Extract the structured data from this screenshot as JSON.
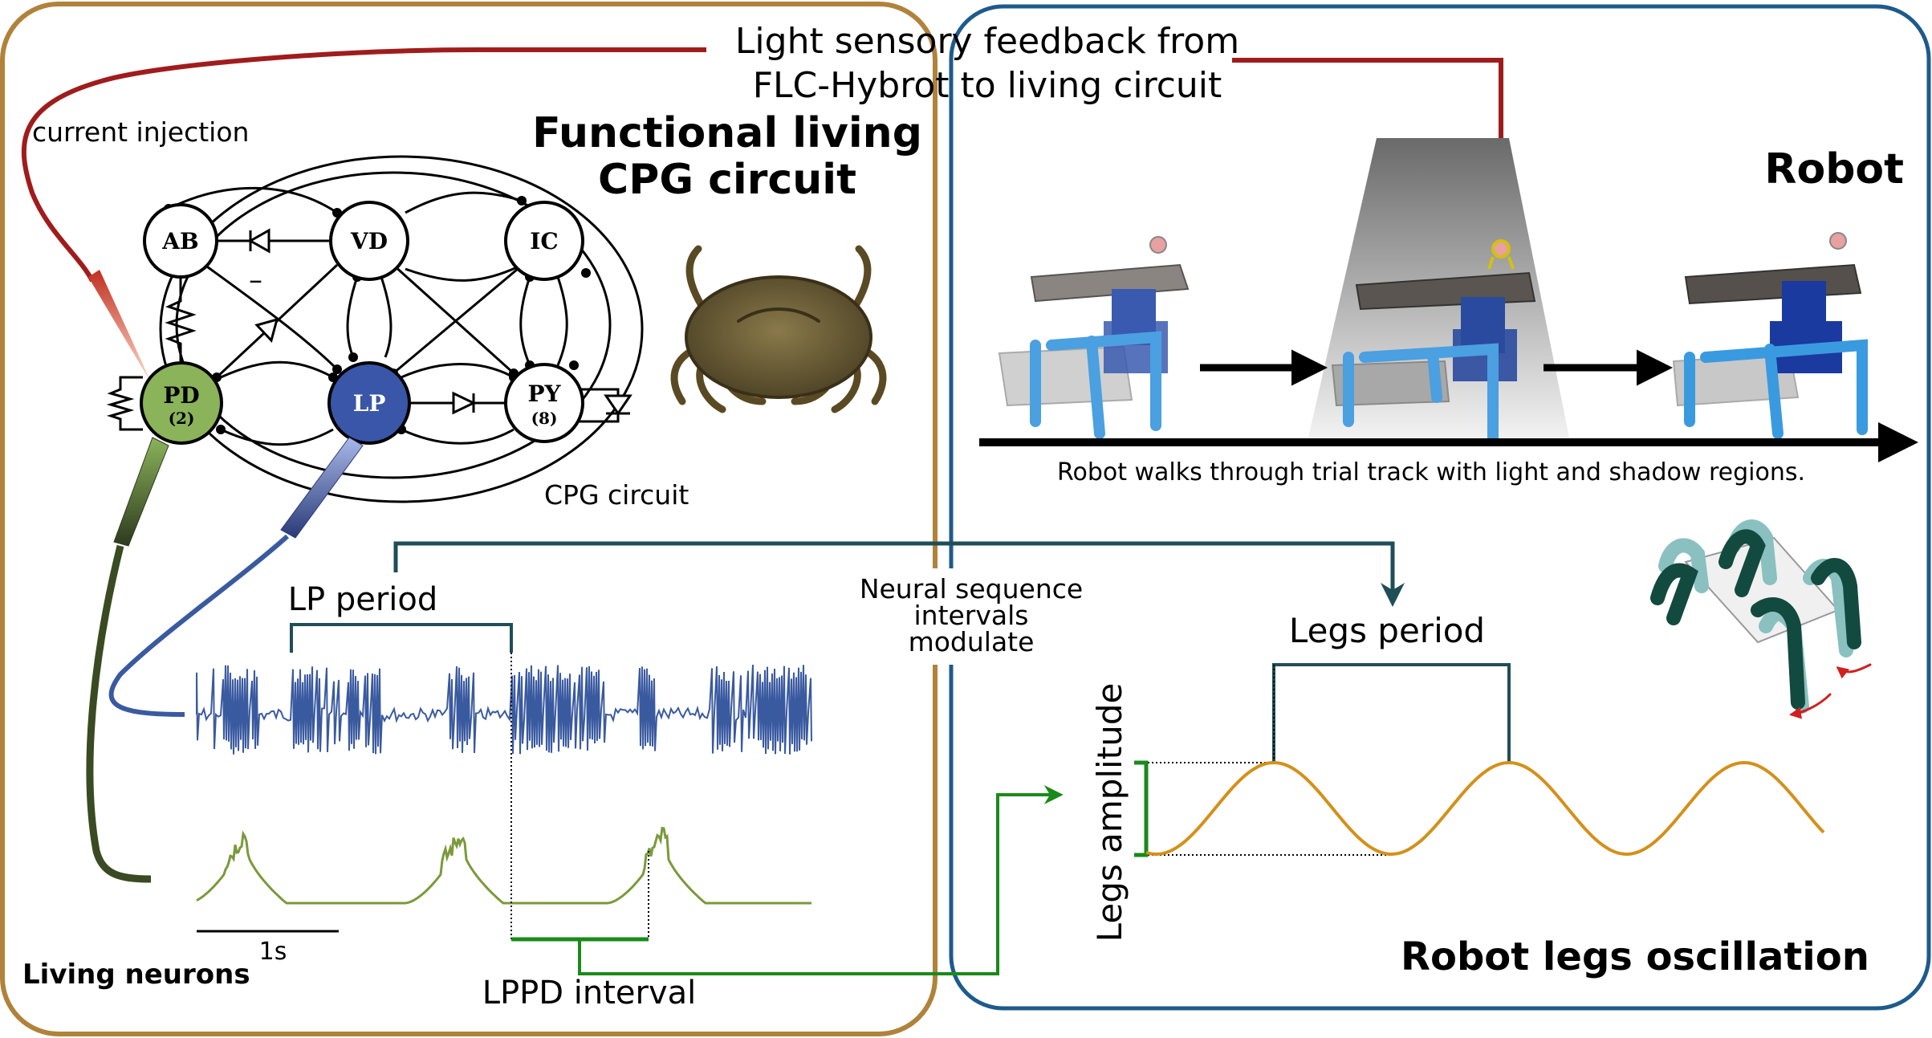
{
  "titles": {
    "feedback_line1": "Light sensory feedback from",
    "feedback_line2": "FLC-Hybrot to living circuit",
    "living_line1": "Functional living",
    "living_line2": "CPG circuit",
    "robot": "Robot",
    "legs_oscillation": "Robot legs oscillation",
    "living_neurons": "Living neurons"
  },
  "labels": {
    "current_injection": "current injection",
    "cpg_circuit": "CPG circuit",
    "robot_walk": "Robot walks through trial track with light and shadow regions.",
    "lp_period": "LP period",
    "legs_period": "Legs period",
    "legs_amplitude": "Legs amplitude",
    "modulate_line1": "Neural sequence",
    "modulate_line2": "intervals",
    "modulate_line3": "modulate",
    "lppd_interval": "LPPD interval",
    "scale": "1s",
    "inhibitory_mark": "–"
  },
  "neurons": {
    "ab": "AB",
    "vd": "VD",
    "ic": "IC",
    "pd": "PD",
    "pd_count": "(2)",
    "lp": "LP",
    "py": "PY",
    "py_count": "(8)"
  },
  "colors": {
    "living_border": "#b0823a",
    "robot_border": "#1e5a8c",
    "feedback_wire": "#a01c1c",
    "pd_fill": "#8bb35a",
    "lp_fill": "#3a56a8",
    "lp_trace": "#3a5aa0",
    "pd_trace": "#7a9a3a",
    "modulation_arrow": "#1f4e58",
    "legs_wave": "#d4901a",
    "lppd_bracket": "#1a8a1a",
    "robot_leg": "#4aa0e0",
    "robot_body": "#3a5ab0"
  }
}
